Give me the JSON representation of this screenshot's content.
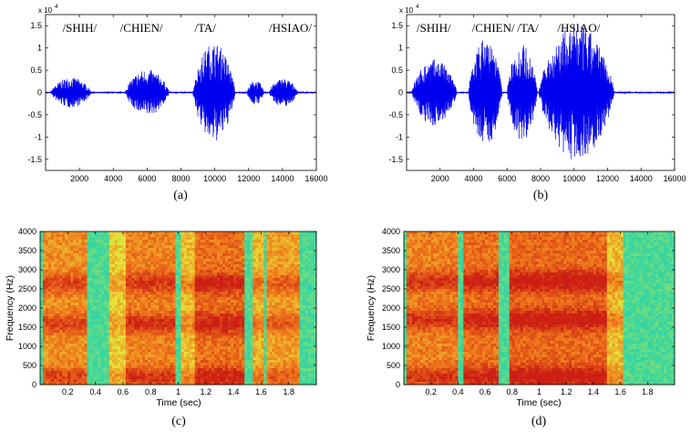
{
  "chart_data": [
    {
      "type": "line",
      "panel_caption": "(a)",
      "x_ticks": [
        "2000",
        "4000",
        "6000",
        "8000",
        "10000",
        "12000",
        "14000",
        "16000"
      ],
      "y_ticks": [
        "-1.5",
        "-1",
        "-0.5",
        "0",
        "0.5",
        "1",
        "1.5"
      ],
      "y_exponent_base": "x 10",
      "y_exponent_power": "4",
      "xlim": [
        0,
        16000
      ],
      "ylim": [
        -17500,
        17500
      ],
      "color": "#0000ee",
      "annotations": [
        "/SHIH/",
        "/CHIEN/",
        "/TA/",
        "/HSIAO/"
      ],
      "annotation_x": [
        1000,
        4400,
        8800,
        13200
      ],
      "segments": [
        {
          "start": 300,
          "end": 2700,
          "amp": 3400
        },
        {
          "start": 4700,
          "end": 7300,
          "amp": 5200
        },
        {
          "start": 8700,
          "end": 11200,
          "amp": 11200
        },
        {
          "start": 11900,
          "end": 12900,
          "amp": 2800
        },
        {
          "start": 13200,
          "end": 14900,
          "amp": 3200
        }
      ]
    },
    {
      "type": "line",
      "panel_caption": "(b)",
      "x_ticks": [
        "2000",
        "4000",
        "6000",
        "8000",
        "10000",
        "12000",
        "14000",
        "16000"
      ],
      "y_ticks": [
        "-1.5",
        "-1",
        "-0.5",
        "0",
        "0.5",
        "1",
        "1.5"
      ],
      "y_exponent_base": "x 10",
      "y_exponent_power": "4",
      "xlim": [
        0,
        16000
      ],
      "ylim": [
        -17500,
        17500
      ],
      "color": "#0000ee",
      "annotations": [
        "/SHIH/",
        "/CHIEN/",
        "/TA/",
        "/HSIAO/"
      ],
      "annotation_x": [
        600,
        3900,
        6600,
        9000
      ],
      "segments": [
        {
          "start": 300,
          "end": 3000,
          "amp": 7500
        },
        {
          "start": 3700,
          "end": 5700,
          "amp": 12300
        },
        {
          "start": 6000,
          "end": 7800,
          "amp": 11000
        },
        {
          "start": 7900,
          "end": 12400,
          "amp": 15300
        }
      ]
    },
    {
      "type": "heatmap",
      "panel_caption": "(c)",
      "xlabel": "Time (sec)",
      "ylabel": "Frequency (Hz)",
      "x_ticks": [
        "0.2",
        "0.4",
        "0.6",
        "0.8",
        "1",
        "1.2",
        "1.4",
        "1.6",
        "1.8"
      ],
      "y_ticks": [
        "0",
        "500",
        "1000",
        "1500",
        "2000",
        "2500",
        "3000",
        "3500",
        "4000"
      ],
      "xlim": [
        0,
        2
      ],
      "ylim": [
        0,
        4000
      ],
      "colormap": [
        "#2fb8d8",
        "#36d6a0",
        "#e6e83a",
        "#f07a1c",
        "#cc1f14"
      ],
      "voiced_regions": [
        {
          "t0": 0.02,
          "t1": 0.34,
          "strength": 0.78
        },
        {
          "t0": 0.5,
          "t1": 0.62,
          "strength": 0.45
        },
        {
          "t0": 0.62,
          "t1": 0.97,
          "strength": 0.85
        },
        {
          "t0": 1.02,
          "t1": 1.12,
          "strength": 0.55
        },
        {
          "t0": 1.12,
          "t1": 1.47,
          "strength": 0.95
        },
        {
          "t0": 1.55,
          "t1": 1.62,
          "strength": 0.6
        },
        {
          "t0": 1.64,
          "t1": 1.88,
          "strength": 0.7
        }
      ],
      "formants_hz": [
        200,
        1600,
        2650
      ]
    },
    {
      "type": "heatmap",
      "panel_caption": "(d)",
      "xlabel": "Time (sec)",
      "ylabel": "Frequency (Hz)",
      "x_ticks": [
        "0.2",
        "0.4",
        "0.6",
        "0.8",
        "1",
        "1.2",
        "1.4",
        "1.6",
        "1.8"
      ],
      "y_ticks": [
        "0",
        "500",
        "1000",
        "1500",
        "2000",
        "2500",
        "3000",
        "3500",
        "4000"
      ],
      "xlim": [
        0,
        2
      ],
      "ylim": [
        0,
        4000
      ],
      "colormap": [
        "#2fb8d8",
        "#36d6a0",
        "#e6e83a",
        "#f07a1c",
        "#cc1f14"
      ],
      "voiced_regions": [
        {
          "t0": 0.02,
          "t1": 0.4,
          "strength": 0.85
        },
        {
          "t0": 0.45,
          "t1": 0.7,
          "strength": 0.95
        },
        {
          "t0": 0.78,
          "t1": 1.5,
          "strength": 1.0
        },
        {
          "t0": 1.5,
          "t1": 1.62,
          "strength": 0.55
        }
      ],
      "formants_hz": [
        200,
        1700,
        2700
      ]
    }
  ]
}
